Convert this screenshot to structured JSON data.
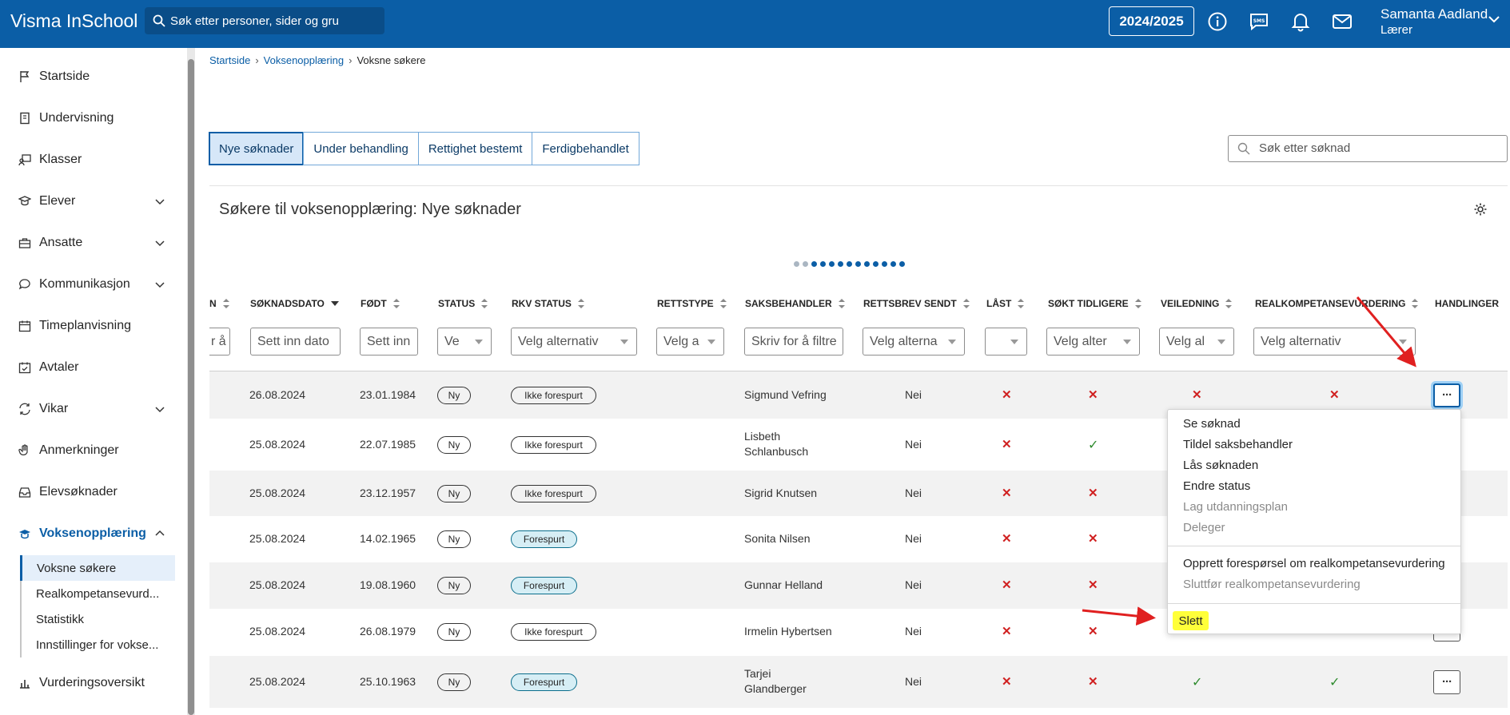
{
  "header": {
    "app_title": "Visma InSchool",
    "search_placeholder": "Søk etter personer, sider og gru",
    "year": "2024/2025",
    "user_name": "Samanta Aadland",
    "user_role": "Lærer",
    "icons": [
      "info-icon",
      "sms-icon",
      "bell-icon",
      "mail-icon",
      "chevron-down-icon"
    ]
  },
  "sidebar": {
    "items": [
      {
        "label": "Startside",
        "icon": "flag-icon"
      },
      {
        "label": "Undervisning",
        "icon": "book-icon"
      },
      {
        "label": "Klasser",
        "icon": "class-icon"
      },
      {
        "label": "Elever",
        "icon": "student-icon"
      },
      {
        "label": "Ansatte",
        "icon": "briefcase-icon"
      },
      {
        "label": "Kommunikasjon",
        "icon": "chat-icon"
      },
      {
        "label": "Timeplanvisning",
        "icon": "calendar-icon"
      },
      {
        "label": "Avtaler",
        "icon": "calendar-check-icon"
      },
      {
        "label": "Vikar",
        "icon": "swap-icon"
      },
      {
        "label": "Anmerkninger",
        "icon": "hand-icon"
      },
      {
        "label": "Elevsøknader",
        "icon": "inbox-icon"
      },
      {
        "label": "Voksenopplæring",
        "icon": "mortarboard-icon"
      },
      {
        "label": "Vurderingsoversikt",
        "icon": "chart-icon"
      }
    ],
    "subitems": [
      "Voksne søkere",
      "Realkompetansevurd...",
      "Statistikk",
      "Innstillinger for vokse..."
    ]
  },
  "breadcrumb": [
    "Startside",
    "Voksenopplæring",
    "Voksne søkere"
  ],
  "tabs": [
    "Nye søknader",
    "Under behandling",
    "Rettighet bestemt",
    "Ferdigbehandlet"
  ],
  "app_search_placeholder": "Søk etter søknad",
  "card_title": "Søkere til voksenopplæring: Nye søknader",
  "columns": [
    "N",
    "SØKNADSDATO",
    "FØDT",
    "STATUS",
    "RKV STATUS",
    "RETTSTYPE",
    "SAKSBEHANDLER",
    "RETTSBREV SENDT",
    "LÅST",
    "SØKT TIDLIGERE",
    "VEILEDNING",
    "REALKOMPETANSEVURDERING",
    "HANDLINGER"
  ],
  "filters": [
    "r å",
    "Sett inn dato",
    "Sett inn",
    "Ve",
    "Velg alternativ",
    "Velg a",
    "Skriv for å filtre",
    "Velg alterna",
    "",
    "Velg alter",
    "Velg al",
    "Velg alternativ"
  ],
  "rows": [
    {
      "date": "26.08.2024",
      "born": "23.01.1984",
      "status": "Ny",
      "rkv": "Ikke forespurt",
      "handler": [
        "Sigmund Vefring"
      ],
      "sent": "Nei",
      "locked": "x",
      "prev": "x",
      "guide": "x",
      "rkv_eval": "x"
    },
    {
      "date": "25.08.2024",
      "born": "22.07.1985",
      "status": "Ny",
      "rkv": "Ikke forespurt",
      "handler": [
        "Lisbeth",
        "Schlanbusch"
      ],
      "sent": "Nei",
      "locked": "x",
      "prev": "ok",
      "guide": "",
      "rkv_eval": ""
    },
    {
      "date": "25.08.2024",
      "born": "23.12.1957",
      "status": "Ny",
      "rkv": "Ikke forespurt",
      "handler": [
        "Sigrid Knutsen"
      ],
      "sent": "Nei",
      "locked": "x",
      "prev": "x",
      "guide": "",
      "rkv_eval": ""
    },
    {
      "date": "25.08.2024",
      "born": "14.02.1965",
      "status": "Ny",
      "rkv": "Forespurt",
      "handler": [
        "Sonita Nilsen"
      ],
      "sent": "Nei",
      "locked": "x",
      "prev": "x",
      "guide": "",
      "rkv_eval": ""
    },
    {
      "date": "25.08.2024",
      "born": "19.08.1960",
      "status": "Ny",
      "rkv": "Forespurt",
      "handler": [
        "Gunnar Helland"
      ],
      "sent": "Nei",
      "locked": "x",
      "prev": "x",
      "guide": "",
      "rkv_eval": ""
    },
    {
      "date": "25.08.2024",
      "born": "26.08.1979",
      "status": "Ny",
      "rkv": "Ikke forespurt",
      "handler": [
        "Irmelin Hybertsen"
      ],
      "sent": "Nei",
      "locked": "x",
      "prev": "x",
      "guide": "",
      "rkv_eval": ""
    },
    {
      "date": "25.08.2024",
      "born": "25.10.1963",
      "status": "Ny",
      "rkv": "Forespurt",
      "handler": [
        "Tarjei",
        "Glandberger"
      ],
      "sent": "Nei",
      "locked": "x",
      "prev": "x",
      "guide": "ok",
      "rkv_eval": "ok"
    }
  ],
  "action_button": "···",
  "menu": {
    "items": [
      "Se søknad",
      "Tildel saksbehandler",
      "Lås søknaden",
      "Endre status",
      "Lag utdanningsplan",
      "Deleger"
    ],
    "items2": [
      "Opprett forespørsel om realkompetansevurdering",
      "Sluttfør realkompetansevurdering"
    ],
    "delete": "Slett"
  },
  "colors": {
    "brand": "#0b5ea6",
    "error": "#d02020",
    "success": "#2e8b2e",
    "highlight": "#ffff3a",
    "annotation": "#e02020"
  }
}
